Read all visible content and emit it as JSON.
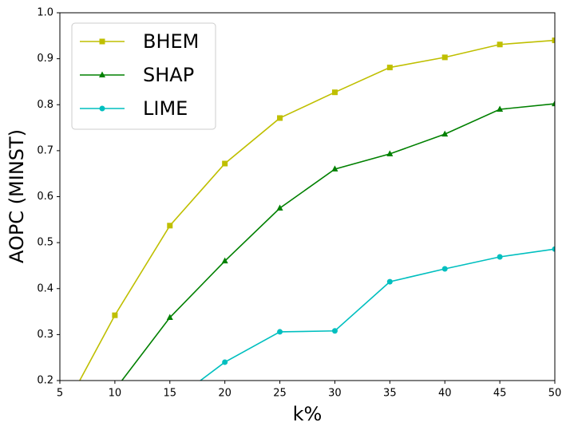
{
  "chart_data": {
    "type": "line",
    "x_label": "k%",
    "y_label": "AOPC (MINST)",
    "x": [
      5,
      10,
      15,
      20,
      25,
      30,
      35,
      40,
      45,
      50
    ],
    "series": [
      {
        "name": "BHEM",
        "color": "#bfbf00",
        "marker": "square",
        "values": [
          0.12,
          0.342,
          0.537,
          0.672,
          0.771,
          0.827,
          0.881,
          0.903,
          0.931,
          0.94
        ]
      },
      {
        "name": "SHAP",
        "color": "#008000",
        "marker": "triangle",
        "values": [
          null,
          0.18,
          0.337,
          0.46,
          0.575,
          0.66,
          0.693,
          0.736,
          0.79,
          0.802
        ]
      },
      {
        "name": "LIME",
        "color": "#00bfbf",
        "marker": "circle",
        "values": [
          null,
          null,
          0.15,
          0.24,
          0.306,
          0.308,
          0.415,
          0.443,
          0.469,
          0.486
        ]
      }
    ],
    "xlim": [
      5,
      50
    ],
    "xticks": [
      5,
      10,
      15,
      20,
      25,
      30,
      35,
      40,
      45,
      50
    ],
    "ylim": [
      0.2,
      1.0
    ],
    "yticks": [
      0.2,
      0.3,
      0.4,
      0.5,
      0.6,
      0.7,
      0.8,
      0.9,
      {
        "value": 1.0,
        "label": "1.0"
      }
    ],
    "grid": false,
    "legend": "upper left"
  }
}
